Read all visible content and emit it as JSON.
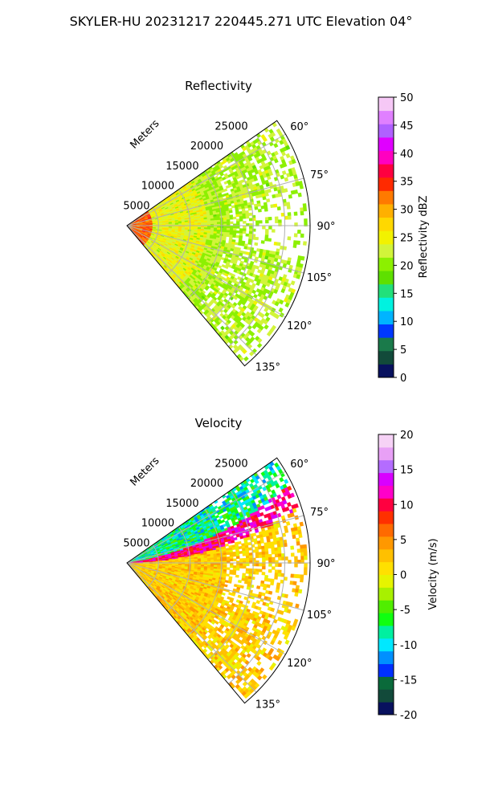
{
  "figure": {
    "suptitle": "SKYLER-HU  20231217  220445.271 UTC Elevation 04°"
  },
  "chart_data": [
    {
      "type": "heatmap",
      "projection": "polar-sector",
      "title": "Reflectivity",
      "range_label": "Meters",
      "range_ticks": [
        "5000",
        "10000",
        "15000",
        "20000",
        "25000"
      ],
      "range_tick_values": [
        5000,
        10000,
        15000,
        20000,
        25000
      ],
      "rmax": 29000,
      "azimuth_ticks": [
        "60°",
        "75°",
        "90°",
        "105°",
        "120°",
        "135°"
      ],
      "azimuth_tick_values": [
        60,
        75,
        90,
        105,
        120,
        135
      ],
      "azimuth_range": [
        55,
        140
      ],
      "grid": true,
      "colorbar": {
        "label": "Reflectivity dBZ",
        "vmin": 0,
        "vmax": 50,
        "ticks": [
          "0",
          "5",
          "10",
          "15",
          "20",
          "25",
          "30",
          "35",
          "40",
          "45",
          "50"
        ],
        "tick_values": [
          0,
          5,
          10,
          15,
          20,
          25,
          30,
          35,
          40,
          45,
          50
        ],
        "colors": [
          "#08115e",
          "#124a3a",
          "#1a7a4a",
          "#0038ff",
          "#00b4ff",
          "#00f2e0",
          "#22e07a",
          "#5ee000",
          "#8cf000",
          "#d2f43a",
          "#f2f200",
          "#ffd800",
          "#ffb000",
          "#ff7a00",
          "#ff2a00",
          "#ff0040",
          "#ff00c0",
          "#e000ff",
          "#b060ff",
          "#e080ff",
          "#f6c8f6"
        ]
      },
      "fields": {
        "near_value": 36,
        "mid_value": 27,
        "far_value": 22
      }
    },
    {
      "type": "heatmap",
      "projection": "polar-sector",
      "title": "Velocity",
      "range_label": "Meters",
      "range_ticks": [
        "5000",
        "10000",
        "15000",
        "20000",
        "25000"
      ],
      "range_tick_values": [
        5000,
        10000,
        15000,
        20000,
        25000
      ],
      "rmax": 29000,
      "azimuth_ticks": [
        "60°",
        "75°",
        "90°",
        "105°",
        "120°",
        "135°"
      ],
      "azimuth_tick_values": [
        60,
        75,
        90,
        105,
        120,
        135
      ],
      "azimuth_range": [
        55,
        140
      ],
      "grid": true,
      "colorbar": {
        "label": "Velocity (m/s)",
        "vmin": -20,
        "vmax": 20,
        "ticks": [
          "-20",
          "-15",
          "-10",
          "-5",
          "0",
          "5",
          "10",
          "15",
          "20"
        ],
        "tick_values": [
          -20,
          -15,
          -10,
          -5,
          0,
          5,
          10,
          15,
          20
        ],
        "colors": [
          "#08115e",
          "#124a3a",
          "#0a6a3a",
          "#0030ff",
          "#0090ff",
          "#00e8ff",
          "#00f0a0",
          "#10ff10",
          "#50ee00",
          "#a8f000",
          "#e6f400",
          "#ffe000",
          "#ffc000",
          "#ff9800",
          "#ff6a00",
          "#ff3000",
          "#ff0040",
          "#ff00c8",
          "#d800ff",
          "#b46cff",
          "#e8a0f6",
          "#f6d2f6"
        ]
      },
      "fields": {
        "approaching_value": -8,
        "band_value": 11,
        "receding_value": 2
      }
    }
  ]
}
